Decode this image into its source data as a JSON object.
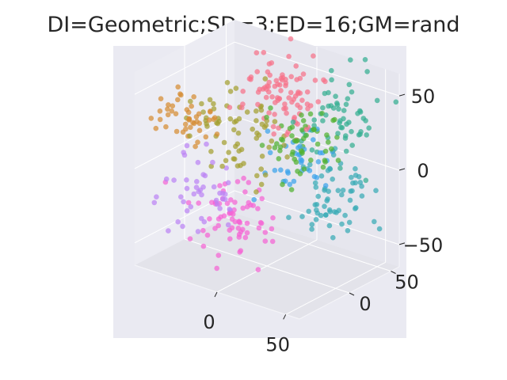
{
  "title": "DI=Geometric;SD=3;ED=16;GM=rand",
  "chart_data": {
    "type": "scatter",
    "projection": "3d",
    "title": "DI=Geometric;SD=3;ED=16;GM=rand",
    "xlabel": "",
    "ylabel": "",
    "zlabel": "",
    "grid": true,
    "legend": "none",
    "axes_background": "#eaeaf2",
    "x_ticks": [
      {
        "value": 0,
        "label": "0"
      },
      {
        "value": 50,
        "label": "50"
      }
    ],
    "y_ticks": [
      {
        "value": 0,
        "label": "0"
      },
      {
        "value": 50,
        "label": "50"
      }
    ],
    "z_ticks": [
      {
        "value": -50,
        "label": "−50"
      },
      {
        "value": 0,
        "label": "0"
      },
      {
        "value": 50,
        "label": "50"
      }
    ],
    "xlim": [
      -60,
      60
    ],
    "ylim": [
      -60,
      60
    ],
    "zlim": [
      -65,
      65
    ],
    "series": [
      {
        "color": "#f77189",
        "center": [
          -10,
          35,
          35
        ],
        "spread": 12,
        "count": 90
      },
      {
        "color": "#d58c32",
        "center": [
          -55,
          0,
          20
        ],
        "spread": 10,
        "count": 45
      },
      {
        "color": "#a4a031",
        "center": [
          -30,
          10,
          15
        ],
        "spread": 14,
        "count": 70
      },
      {
        "color": "#50b131",
        "center": [
          5,
          30,
          10
        ],
        "spread": 13,
        "count": 55
      },
      {
        "color": "#34ae91",
        "center": [
          30,
          40,
          30
        ],
        "spread": 14,
        "count": 60
      },
      {
        "color": "#37abb5",
        "center": [
          45,
          5,
          -5
        ],
        "spread": 12,
        "count": 65
      },
      {
        "color": "#3ba3ec",
        "center": [
          15,
          10,
          5
        ],
        "spread": 12,
        "count": 35
      },
      {
        "color": "#bb83f4",
        "center": [
          -40,
          -25,
          -20
        ],
        "spread": 12,
        "count": 45
      },
      {
        "color": "#f564d4",
        "center": [
          -5,
          -30,
          -25
        ],
        "spread": 12,
        "count": 70
      }
    ]
  }
}
